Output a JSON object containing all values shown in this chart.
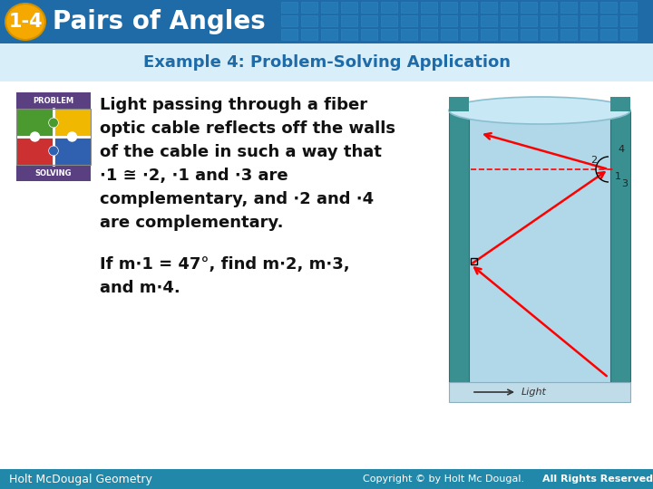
{
  "title_badge": "1-4",
  "title_text": "Pairs of Angles",
  "example_title": "Example 4: Problem-Solving Application",
  "body_lines": [
    "Light passing through a fiber",
    "optic cable reflects off the walls",
    "of the cable in such a way that",
    "∙1 ≅ ∙2, ∙1 and ∙3 are",
    "complementary, and ∙2 and ∙4",
    "are complementary."
  ],
  "question_lines": [
    "If m∙1 = 47°, find m∙2, m∙3,",
    "and m∙4."
  ],
  "footer_left": "Holt McDougal Geometry",
  "footer_right": "Copyright © by Holt Mc Dougal. All Rights Reserved.",
  "footer_right_bold": "All Rights Reserved.",
  "header_bg_color": "#1e6ba8",
  "badge_color": "#f5a800",
  "title_text_color": "#ffffff",
  "example_title_color": "#1e6ba8",
  "body_bg_color": "#ffffff",
  "footer_bg_color": "#2288aa",
  "footer_text_color": "#ffffff",
  "tile_color": "#2a85c0",
  "problem_purple": "#5a4080",
  "solving_purple": "#5a4080",
  "puzzle_green": "#4a9a30",
  "puzzle_red": "#cc3030",
  "puzzle_yellow": "#f0b800",
  "puzzle_blue": "#3060b0",
  "cable_body": "#b0d8e8",
  "cable_wall": "#3a9090",
  "cable_top": "#c8e8f5"
}
